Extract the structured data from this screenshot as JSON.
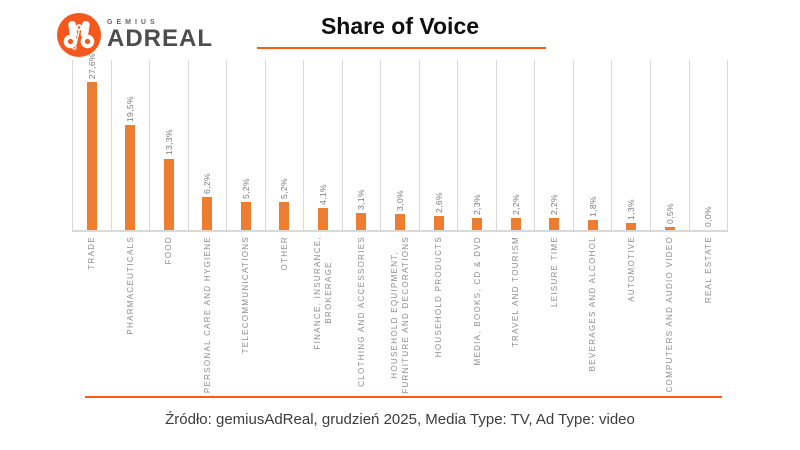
{
  "logo": {
    "icon": "binoculars-icon",
    "brand_top": "GEMIUS",
    "brand_bottom": "ADREAL"
  },
  "header": {
    "title": "Share of Voice"
  },
  "chart_data": {
    "type": "bar",
    "title": "Share of Voice",
    "orientation": "vertical",
    "categories": [
      "TRADE",
      "PHARMACEUTICALS",
      "FOOD",
      "PERSONAL CARE AND HYGIENE",
      "TELECOMMUNICATIONS",
      "OTHER",
      "FINANCE, INSURANCE,\nBROKERAGE",
      "CLOTHING AND ACCESSORIES",
      "HOUSEHOLD EQUIPMENT,\nFURNITURE AND DECORATIONS",
      "HOUSEHOLD PRODUCTS",
      "MEDIA, BOOKS, CD & DVD",
      "TRAVEL AND TOURISM",
      "LEISURE TIME",
      "BEVERAGES AND ALCOHOL",
      "AUTOMOTIVE",
      "COMPUTERS AND AUDIO VIDEO",
      "REAL ESTATE"
    ],
    "values": [
      27.6,
      19.5,
      13.3,
      6.2,
      5.2,
      5.2,
      4.1,
      3.1,
      3.0,
      2.6,
      2.3,
      2.2,
      2.2,
      1.8,
      1.3,
      0.5,
      0.0
    ],
    "value_labels": [
      "27,6%",
      "19,5%",
      "13,3%",
      "6,2%",
      "5,2%",
      "5,2%",
      "4,1%",
      "3,1%",
      "3,0%",
      "2,6%",
      "2,3%",
      "2,2%",
      "2,2%",
      "1,8%",
      "1,3%",
      "0,5%",
      "0,0%"
    ],
    "xlabel": "",
    "ylabel": "",
    "ylim": [
      0,
      32
    ],
    "legend": "none",
    "gridlines": "vertical category separators, light gray, no horizontal gridlines, no value axis",
    "bar_color": "#ED7D31",
    "category_label_rotation": 90,
    "value_label_rotation": 90
  },
  "footer": {
    "source_text": "Źródło: gemiusAdReal, grudzień 2025, Media Type: TV, Ad Type: video"
  },
  "colors": {
    "accent_orange": "#F4581C",
    "accent_line": "#FF5A0F",
    "bar": "#ED7D31",
    "gridline": "#D9D9D9",
    "category_label": "#8C8C8C",
    "value_label": "#7A7A7A",
    "title_text": "#0F0F0F",
    "footer_text": "#3D3D3D",
    "brand_text": "#4D4D4D"
  }
}
